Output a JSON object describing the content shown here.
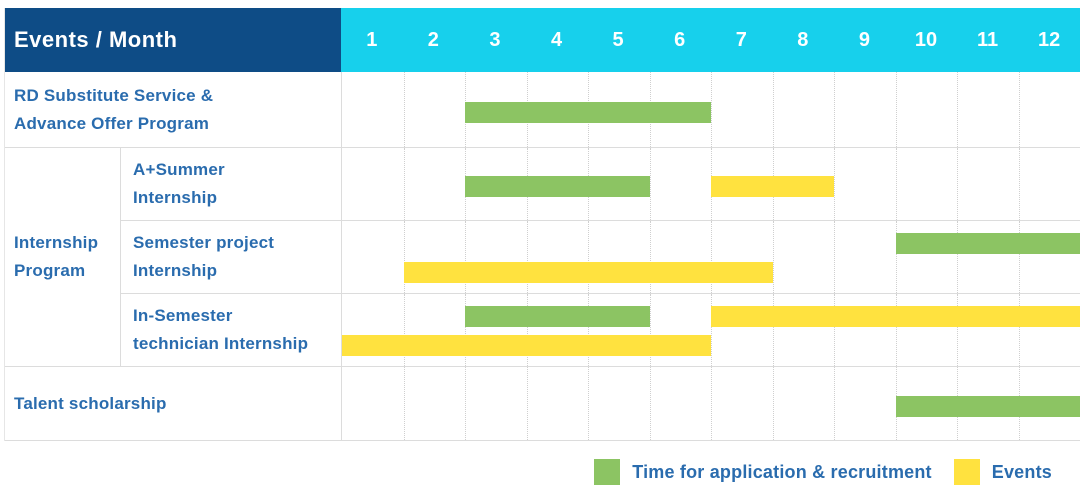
{
  "header": {
    "corner_label": "Events / Month",
    "months": [
      "1",
      "2",
      "3",
      "4",
      "5",
      "6",
      "7",
      "8",
      "9",
      "10",
      "11",
      "12"
    ]
  },
  "colors": {
    "header_navy": "#0e4c86",
    "header_cyan": "#17d0ec",
    "recruitment": "#8cc463",
    "events": "#ffe23f",
    "label_text": "#2a6cae",
    "grid_line": "#dcdcdc",
    "grid_dotted": "#cfcfcf"
  },
  "group_label_lines": [
    "Internship",
    "Program"
  ],
  "rows": [
    {
      "label_lines": [
        "RD Substitute Service &",
        "Advance Offer Program"
      ],
      "bars": [
        {
          "kind": "recruitment",
          "start": 3,
          "end": 6,
          "lane": "single"
        }
      ]
    },
    {
      "label_lines": [
        "A+Summer",
        "Internship"
      ],
      "bars": [
        {
          "kind": "recruitment",
          "start": 3,
          "end": 5,
          "lane": "single"
        },
        {
          "kind": "events",
          "start": 7,
          "end": 8,
          "lane": "single"
        }
      ]
    },
    {
      "label_lines": [
        "Semester project",
        "Internship"
      ],
      "bars": [
        {
          "kind": "recruitment",
          "start": 10,
          "end": 12,
          "lane": "top"
        },
        {
          "kind": "events",
          "start": 2,
          "end": 7,
          "lane": "bottom"
        }
      ]
    },
    {
      "label_lines": [
        "In-Semester",
        "technician Internship"
      ],
      "bars": [
        {
          "kind": "recruitment",
          "start": 3,
          "end": 5,
          "lane": "top"
        },
        {
          "kind": "events",
          "start": 7,
          "end": 12,
          "lane": "top"
        },
        {
          "kind": "events",
          "start": 1,
          "end": 6,
          "lane": "bottom"
        }
      ]
    },
    {
      "label_lines": [
        "Talent scholarship",
        ""
      ],
      "bars": [
        {
          "kind": "recruitment",
          "start": 10,
          "end": 12,
          "lane": "single"
        }
      ]
    }
  ],
  "legend": {
    "recruitment_label": "Time for application & recruitment",
    "events_label": "Events"
  },
  "chart_data": {
    "type": "bar",
    "subtype": "gantt",
    "title": "Events / Month",
    "x_axis": {
      "label": "Month",
      "ticks": [
        1,
        2,
        3,
        4,
        5,
        6,
        7,
        8,
        9,
        10,
        11,
        12
      ],
      "range": [
        1,
        12
      ],
      "grid": "dotted-vertical"
    },
    "legend_entries": [
      {
        "name": "Time for application & recruitment",
        "color": "#8cc463"
      },
      {
        "name": "Events",
        "color": "#ffe23f"
      }
    ],
    "legend_position": "bottom-right",
    "tasks": [
      {
        "row": "RD Substitute Service & Advance Offer Program",
        "group": null,
        "spans": [
          {
            "series": "Time for application & recruitment",
            "start_month": 3,
            "end_month": 6
          }
        ]
      },
      {
        "row": "A+Summer Internship",
        "group": "Internship Program",
        "spans": [
          {
            "series": "Time for application & recruitment",
            "start_month": 3,
            "end_month": 5
          },
          {
            "series": "Events",
            "start_month": 7,
            "end_month": 8
          }
        ]
      },
      {
        "row": "Semester project Internship",
        "group": "Internship Program",
        "spans": [
          {
            "series": "Time for application & recruitment",
            "start_month": 10,
            "end_month": 12
          },
          {
            "series": "Events",
            "start_month": 2,
            "end_month": 7
          }
        ]
      },
      {
        "row": "In-Semester technician Internship",
        "group": "Internship Program",
        "spans": [
          {
            "series": "Time for application & recruitment",
            "start_month": 3,
            "end_month": 5
          },
          {
            "series": "Events",
            "start_month": 7,
            "end_month": 12
          },
          {
            "series": "Events",
            "start_month": 1,
            "end_month": 6
          }
        ]
      },
      {
        "row": "Talent scholarship",
        "group": null,
        "spans": [
          {
            "series": "Time for application & recruitment",
            "start_month": 10,
            "end_month": 12
          }
        ]
      }
    ]
  }
}
